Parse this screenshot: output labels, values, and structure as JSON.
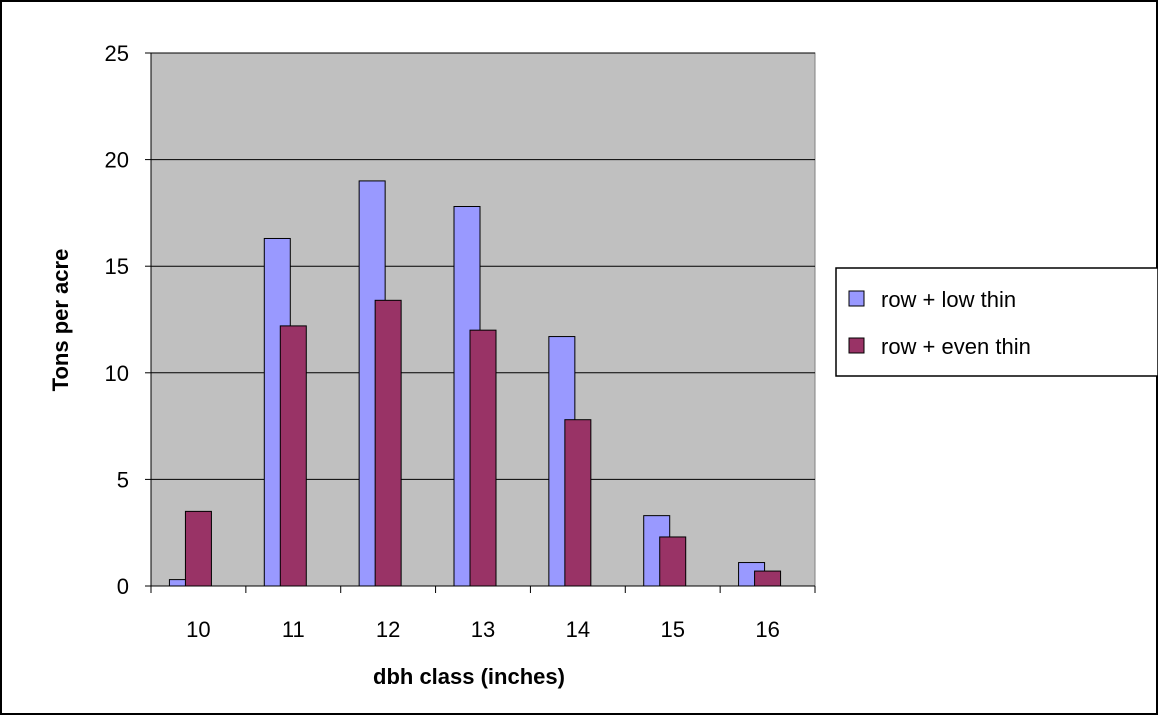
{
  "chart_data": {
    "type": "bar",
    "title": "",
    "xlabel": "dbh class (inches)",
    "ylabel": "Tons per acre",
    "categories": [
      "10",
      "11",
      "12",
      "13",
      "14",
      "15",
      "16"
    ],
    "series": [
      {
        "name": "row + low thin",
        "color": "#9999ff",
        "values": [
          0.3,
          16.3,
          19.0,
          17.8,
          11.7,
          3.3,
          1.1
        ]
      },
      {
        "name": "row + even thin",
        "color": "#993366",
        "values": [
          3.5,
          12.2,
          13.4,
          12.0,
          7.8,
          2.3,
          0.7
        ]
      }
    ],
    "ylim": [
      0,
      25
    ],
    "yticks": [
      "0",
      "5",
      "10",
      "15",
      "20",
      "25"
    ],
    "grid": true,
    "plot_background": "#c0c0c0",
    "legend_position": "right"
  }
}
